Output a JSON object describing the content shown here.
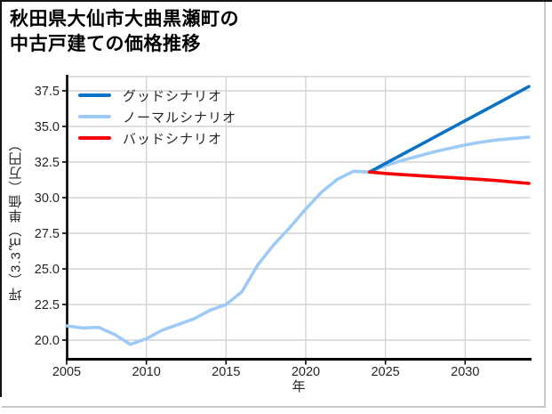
{
  "title": {
    "line1": "秋田県大仙市大曲黒瀬町の",
    "line2": "中古戸建ての価格推移"
  },
  "chart_data": {
    "type": "line",
    "title": "秋田県大仙市大曲黒瀬町の中古戸建ての価格推移",
    "xlabel": "年",
    "ylabel": "坪（3.3㎡）単価（万円）",
    "xlim": [
      2005,
      2034
    ],
    "ylim": [
      18.7,
      38.5
    ],
    "grid": true,
    "legend_position": "upper left",
    "x_ticks": [
      2005,
      2010,
      2015,
      2020,
      2025,
      2030
    ],
    "x_gridline_years": [
      2010,
      2015,
      2020,
      2025,
      2030
    ],
    "y_ticks": [
      "20.0",
      "22.5",
      "25.0",
      "27.5",
      "30.0",
      "32.5",
      "35.0",
      "37.5"
    ],
    "colors": {
      "grid": "#d3d3d3",
      "axis": "#000000",
      "tick_text": "#262626"
    },
    "series": [
      {
        "id": "good",
        "name": "グッドシナリオ",
        "color": "#0b72c6",
        "x": [
          2024,
          2025,
          2026,
          2027,
          2028,
          2029,
          2030,
          2031,
          2032,
          2033,
          2034
        ],
        "values": [
          31.8,
          32.4,
          33.0,
          33.6,
          34.2,
          34.8,
          35.4,
          36.0,
          36.6,
          37.2,
          37.8
        ]
      },
      {
        "id": "normal",
        "name": "ノーマルシナリオ",
        "color": "#9ecbf5",
        "x": [
          2005,
          2006,
          2007,
          2008,
          2009,
          2010,
          2011,
          2012,
          2013,
          2014,
          2015,
          2016,
          2017,
          2018,
          2019,
          2020,
          2021,
          2022,
          2023,
          2024,
          2025,
          2026,
          2027,
          2028,
          2029,
          2030,
          2031,
          2032,
          2033,
          2034
        ],
        "values": [
          21.0,
          20.85,
          20.9,
          20.4,
          19.7,
          20.1,
          20.7,
          21.1,
          21.5,
          22.1,
          22.5,
          23.4,
          25.3,
          26.7,
          27.9,
          29.2,
          30.4,
          31.3,
          31.85,
          31.8,
          32.25,
          32.6,
          32.9,
          33.2,
          33.45,
          33.7,
          33.9,
          34.05,
          34.15,
          34.25
        ]
      },
      {
        "id": "bad",
        "name": "バッドシナリオ",
        "color": "#fa0000",
        "x": [
          2024,
          2025,
          2026,
          2027,
          2028,
          2029,
          2030,
          2031,
          2032,
          2033,
          2034
        ],
        "values": [
          31.8,
          31.7,
          31.62,
          31.55,
          31.48,
          31.42,
          31.35,
          31.28,
          31.2,
          31.1,
          31.0
        ]
      }
    ]
  }
}
